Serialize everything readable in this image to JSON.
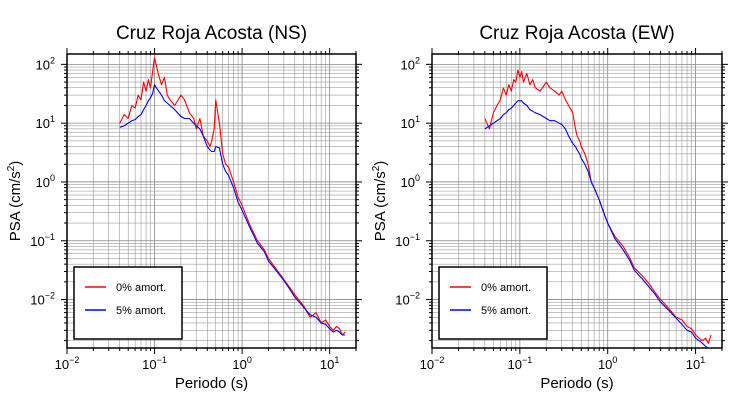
{
  "chart_data": [
    {
      "type": "line",
      "title": "Cruz Roja Acosta (NS)",
      "xlabel": "Periodo (s)",
      "ylabel_main": "PSA (cm/s",
      "ylabel_sup": "2",
      "ylabel_end": ")",
      "xscale": "log",
      "yscale": "log",
      "xlim": [
        0.01,
        20
      ],
      "ylim": [
        0.0015,
        150
      ],
      "grid": true,
      "legend_position": "bottom-left",
      "x_ticks": [
        {
          "value": 0.01,
          "base": "10",
          "exp": "−2"
        },
        {
          "value": 0.1,
          "base": "10",
          "exp": "−1"
        },
        {
          "value": 1,
          "base": "10",
          "exp": "0"
        },
        {
          "value": 10,
          "base": "10",
          "exp": "1"
        }
      ],
      "y_ticks": [
        {
          "value": 0.01,
          "base": "10",
          "exp": "−2"
        },
        {
          "value": 0.1,
          "base": "10",
          "exp": "−1"
        },
        {
          "value": 1,
          "base": "10",
          "exp": "0"
        },
        {
          "value": 10,
          "base": "10",
          "exp": "1"
        },
        {
          "value": 100,
          "base": "10",
          "exp": "2"
        }
      ],
      "series": [
        {
          "name": "0% amort.",
          "color": "#ff0000",
          "x": [
            0.04,
            0.045,
            0.05,
            0.055,
            0.06,
            0.065,
            0.07,
            0.075,
            0.08,
            0.085,
            0.09,
            0.095,
            0.1,
            0.105,
            0.11,
            0.12,
            0.13,
            0.14,
            0.15,
            0.17,
            0.2,
            0.22,
            0.25,
            0.28,
            0.3,
            0.33,
            0.36,
            0.4,
            0.43,
            0.45,
            0.48,
            0.5,
            0.55,
            0.6,
            0.65,
            0.7,
            0.8,
            0.9,
            1.0,
            1.2,
            1.5,
            1.8,
            2.0,
            2.5,
            3.0,
            3.5,
            4.0,
            5.0,
            6.0,
            7.0,
            8.0,
            9.0,
            10.0,
            11.0,
            12.0,
            13.0,
            14.0,
            15.0
          ],
          "y": [
            10,
            14,
            12,
            20,
            18,
            30,
            25,
            50,
            35,
            55,
            40,
            75,
            130,
            95,
            70,
            45,
            60,
            30,
            25,
            20,
            30,
            25,
            15,
            12,
            8,
            12,
            6,
            5,
            4,
            5,
            8,
            25,
            10,
            3,
            2,
            1.8,
            1,
            0.55,
            0.4,
            0.2,
            0.1,
            0.07,
            0.05,
            0.032,
            0.022,
            0.016,
            0.012,
            0.008,
            0.005,
            0.006,
            0.004,
            0.0045,
            0.0035,
            0.003,
            0.0035,
            0.0032,
            0.0025,
            0.0028
          ]
        },
        {
          "name": "5% amort.",
          "color": "#0000ff",
          "x": [
            0.04,
            0.045,
            0.05,
            0.055,
            0.06,
            0.065,
            0.07,
            0.075,
            0.08,
            0.085,
            0.09,
            0.095,
            0.1,
            0.105,
            0.11,
            0.12,
            0.13,
            0.14,
            0.15,
            0.17,
            0.2,
            0.22,
            0.25,
            0.28,
            0.3,
            0.33,
            0.36,
            0.4,
            0.43,
            0.45,
            0.48,
            0.5,
            0.55,
            0.6,
            0.65,
            0.7,
            0.8,
            0.9,
            1.0,
            1.2,
            1.5,
            1.8,
            2.0,
            2.5,
            3.0,
            3.5,
            4.0,
            5.0,
            6.0,
            7.0,
            8.0,
            9.0,
            10.0,
            11.0,
            12.0,
            13.0,
            14.0,
            15.0
          ],
          "y": [
            8.5,
            9,
            10,
            11,
            11.5,
            13,
            14,
            17,
            20,
            24,
            27,
            32,
            45,
            40,
            36,
            30,
            24,
            22,
            20,
            17,
            13,
            12,
            12,
            10,
            9,
            8,
            6,
            4,
            3.5,
            3.3,
            3.3,
            4,
            3.8,
            2,
            1.5,
            1.3,
            0.8,
            0.45,
            0.33,
            0.18,
            0.09,
            0.065,
            0.045,
            0.03,
            0.021,
            0.015,
            0.011,
            0.0075,
            0.0055,
            0.005,
            0.004,
            0.0038,
            0.0032,
            0.0028,
            0.003,
            0.0028,
            0.0025,
            0.0025
          ]
        }
      ]
    },
    {
      "type": "line",
      "title": "Cruz Roja Acosta (EW)",
      "xlabel": "Periodo (s)",
      "ylabel_main": "PSA (cm/s",
      "ylabel_sup": "2",
      "ylabel_end": ")",
      "xscale": "log",
      "yscale": "log",
      "xlim": [
        0.01,
        20
      ],
      "ylim": [
        0.0015,
        150
      ],
      "grid": true,
      "legend_position": "bottom-left",
      "x_ticks": [
        {
          "value": 0.01,
          "base": "10",
          "exp": "−2"
        },
        {
          "value": 0.1,
          "base": "10",
          "exp": "−1"
        },
        {
          "value": 1,
          "base": "10",
          "exp": "0"
        },
        {
          "value": 10,
          "base": "10",
          "exp": "1"
        }
      ],
      "y_ticks": [
        {
          "value": 0.01,
          "base": "10",
          "exp": "−2"
        },
        {
          "value": 0.1,
          "base": "10",
          "exp": "−1"
        },
        {
          "value": 1,
          "base": "10",
          "exp": "0"
        },
        {
          "value": 10,
          "base": "10",
          "exp": "1"
        },
        {
          "value": 100,
          "base": "10",
          "exp": "2"
        }
      ],
      "series": [
        {
          "name": "0% amort.",
          "color": "#ff0000",
          "x": [
            0.04,
            0.045,
            0.05,
            0.055,
            0.06,
            0.065,
            0.07,
            0.075,
            0.08,
            0.085,
            0.09,
            0.095,
            0.1,
            0.105,
            0.11,
            0.12,
            0.13,
            0.14,
            0.15,
            0.17,
            0.2,
            0.22,
            0.25,
            0.28,
            0.3,
            0.33,
            0.36,
            0.4,
            0.43,
            0.45,
            0.48,
            0.5,
            0.55,
            0.6,
            0.65,
            0.7,
            0.8,
            0.9,
            1.0,
            1.2,
            1.5,
            1.8,
            2.0,
            2.5,
            3.0,
            3.5,
            4.0,
            5.0,
            6.0,
            7.0,
            8.0,
            9.0,
            10.0,
            11.0,
            12.0,
            13.0,
            14.0,
            15.0
          ],
          "y": [
            12,
            8,
            15,
            20,
            25,
            40,
            30,
            45,
            35,
            55,
            50,
            80,
            60,
            75,
            50,
            70,
            45,
            55,
            40,
            35,
            50,
            40,
            35,
            30,
            35,
            25,
            20,
            15,
            8,
            6,
            5,
            4,
            3,
            2,
            1,
            0.8,
            0.5,
            0.3,
            0.2,
            0.12,
            0.08,
            0.05,
            0.035,
            0.025,
            0.018,
            0.013,
            0.01,
            0.007,
            0.005,
            0.0045,
            0.0035,
            0.0032,
            0.0025,
            0.0022,
            0.002,
            0.0022,
            0.0018,
            0.0025
          ]
        },
        {
          "name": "5% amort.",
          "color": "#0000ff",
          "x": [
            0.04,
            0.045,
            0.05,
            0.055,
            0.06,
            0.065,
            0.07,
            0.075,
            0.08,
            0.085,
            0.09,
            0.095,
            0.1,
            0.105,
            0.11,
            0.12,
            0.13,
            0.14,
            0.15,
            0.17,
            0.2,
            0.22,
            0.25,
            0.28,
            0.3,
            0.33,
            0.36,
            0.4,
            0.43,
            0.45,
            0.48,
            0.5,
            0.55,
            0.6,
            0.65,
            0.7,
            0.8,
            0.9,
            1.0,
            1.2,
            1.5,
            1.8,
            2.0,
            2.5,
            3.0,
            3.5,
            4.0,
            5.0,
            6.0,
            7.0,
            8.0,
            9.0,
            10.0,
            11.0,
            12.0,
            13.0,
            14.0,
            15.0
          ],
          "y": [
            8,
            9,
            10,
            11,
            12,
            14,
            15,
            17,
            18,
            20,
            22,
            24,
            24,
            24,
            22,
            20,
            17,
            16,
            15,
            14,
            12,
            11,
            11,
            10,
            9.5,
            8,
            6,
            4.5,
            4,
            3.5,
            3,
            2.5,
            2,
            1.5,
            1,
            0.8,
            0.5,
            0.3,
            0.2,
            0.11,
            0.07,
            0.045,
            0.032,
            0.022,
            0.016,
            0.012,
            0.009,
            0.0065,
            0.0048,
            0.0038,
            0.003,
            0.0028,
            0.0022,
            0.002,
            0.0018,
            0.0016,
            0.0015,
            0.0015
          ]
        }
      ]
    }
  ]
}
